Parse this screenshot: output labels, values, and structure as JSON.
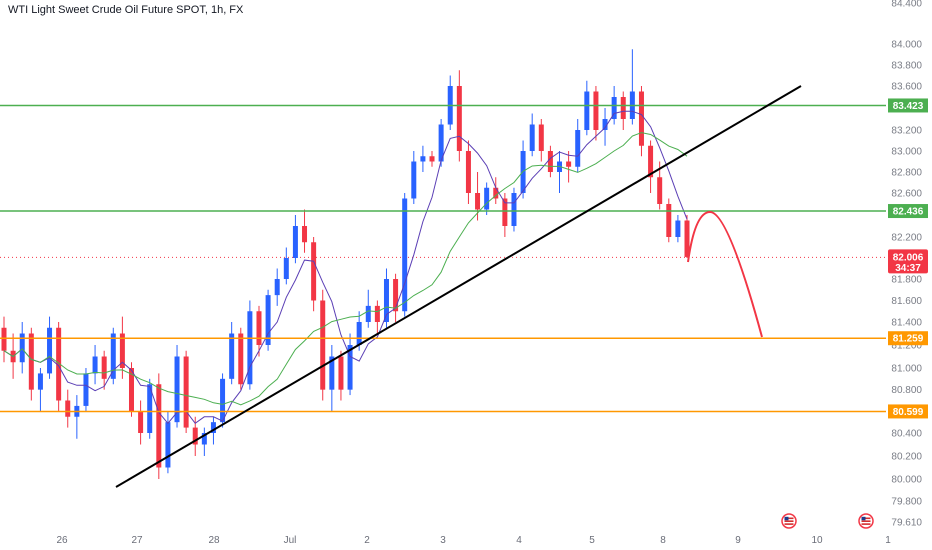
{
  "header": {
    "title": "WTI Light Sweet Crude Oil Future SPOT, 1h, FX"
  },
  "current_price": {
    "value": "82.006",
    "countdown": "34:37",
    "color": "#f23645"
  },
  "events_icon": "us-flag-icon",
  "chart_data": {
    "type": "candlestick",
    "title": "WTI Light Sweet Crude Oil Future SPOT, 1h, FX",
    "ylim": [
      79.61,
      84.4
    ],
    "y_ticks": [
      "84.400",
      "84.000",
      "83.800",
      "83.600",
      "83.200",
      "83.000",
      "82.800",
      "82.600",
      "82.200",
      "81.800",
      "81.600",
      "81.400",
      "81.200",
      "81.000",
      "80.800",
      "80.400",
      "80.200",
      "80.000",
      "79.800",
      "79.610"
    ],
    "x_ticks": [
      "26",
      "27",
      "28",
      "Jul",
      "2",
      "3",
      "4",
      "5",
      "8",
      "9",
      "10",
      "1"
    ],
    "bull_color": "#2962ff",
    "bear_color": "#f23645",
    "candles_approx": [
      [
        81.35,
        81.45,
        81.05,
        81.15
      ],
      [
        81.15,
        81.3,
        80.9,
        81.05
      ],
      [
        81.05,
        81.4,
        80.95,
        81.3
      ],
      [
        81.3,
        81.35,
        80.7,
        80.8
      ],
      [
        80.8,
        81.0,
        80.6,
        80.95
      ],
      [
        80.95,
        81.45,
        80.9,
        81.35
      ],
      [
        81.35,
        81.4,
        80.6,
        80.7
      ],
      [
        80.7,
        80.8,
        80.45,
        80.55
      ],
      [
        80.55,
        80.75,
        80.35,
        80.65
      ],
      [
        80.65,
        81.0,
        80.6,
        80.95
      ],
      [
        80.95,
        81.2,
        80.85,
        81.1
      ],
      [
        81.1,
        81.15,
        80.8,
        80.9
      ],
      [
        80.9,
        81.35,
        80.85,
        81.3
      ],
      [
        81.3,
        81.45,
        80.9,
        81.0
      ],
      [
        81.0,
        81.05,
        80.55,
        80.6
      ],
      [
        80.6,
        80.7,
        80.3,
        80.4
      ],
      [
        80.4,
        80.9,
        80.35,
        80.85
      ],
      [
        80.85,
        80.95,
        80.0,
        80.1
      ],
      [
        80.1,
        80.6,
        80.05,
        80.5
      ],
      [
        80.5,
        81.2,
        80.45,
        81.1
      ],
      [
        81.1,
        81.15,
        80.4,
        80.45
      ],
      [
        80.45,
        80.55,
        80.2,
        80.3
      ],
      [
        80.3,
        80.45,
        80.2,
        80.4
      ],
      [
        80.4,
        80.55,
        80.3,
        80.5
      ],
      [
        80.5,
        80.95,
        80.45,
        80.9
      ],
      [
        80.9,
        81.4,
        80.85,
        81.3
      ],
      [
        81.3,
        81.35,
        80.8,
        80.85
      ],
      [
        80.85,
        81.6,
        80.8,
        81.5
      ],
      [
        81.5,
        81.55,
        81.1,
        81.2
      ],
      [
        81.2,
        81.7,
        81.15,
        81.65
      ],
      [
        81.65,
        81.9,
        81.55,
        81.8
      ],
      [
        81.8,
        82.1,
        81.75,
        82.0
      ],
      [
        82.0,
        82.4,
        81.95,
        82.3
      ],
      [
        82.3,
        82.45,
        82.05,
        82.15
      ],
      [
        82.15,
        82.2,
        81.5,
        81.6
      ],
      [
        81.6,
        81.7,
        80.7,
        80.8
      ],
      [
        80.8,
        81.2,
        80.6,
        81.1
      ],
      [
        81.1,
        81.15,
        80.7,
        80.8
      ],
      [
        80.8,
        81.3,
        80.75,
        81.2
      ],
      [
        81.2,
        81.5,
        81.15,
        81.4
      ],
      [
        81.4,
        81.7,
        81.35,
        81.55
      ],
      [
        81.55,
        81.6,
        81.3,
        81.4
      ],
      [
        81.4,
        81.9,
        81.35,
        81.8
      ],
      [
        81.8,
        81.85,
        81.4,
        81.5
      ],
      [
        81.5,
        82.6,
        81.45,
        82.55
      ],
      [
        82.55,
        83.0,
        82.5,
        82.9
      ],
      [
        82.9,
        83.05,
        82.8,
        82.95
      ],
      [
        82.95,
        83.0,
        82.85,
        82.9
      ],
      [
        82.9,
        83.3,
        82.85,
        83.25
      ],
      [
        83.25,
        83.7,
        83.2,
        83.6
      ],
      [
        83.6,
        83.75,
        82.9,
        83.0
      ],
      [
        83.0,
        83.1,
        82.5,
        82.6
      ],
      [
        82.6,
        82.8,
        82.35,
        82.45
      ],
      [
        82.45,
        82.7,
        82.4,
        82.65
      ],
      [
        82.65,
        82.75,
        82.5,
        82.55
      ],
      [
        82.55,
        82.6,
        82.2,
        82.3
      ],
      [
        82.3,
        82.65,
        82.25,
        82.6
      ],
      [
        82.6,
        83.1,
        82.55,
        83.0
      ],
      [
        83.0,
        83.35,
        82.95,
        83.25
      ],
      [
        83.25,
        83.3,
        82.9,
        83.0
      ],
      [
        83.0,
        83.05,
        82.75,
        82.8
      ],
      [
        82.8,
        83.0,
        82.6,
        82.9
      ],
      [
        82.9,
        83.0,
        82.7,
        82.85
      ],
      [
        82.85,
        83.3,
        82.8,
        83.2
      ],
      [
        83.2,
        83.65,
        83.15,
        83.55
      ],
      [
        83.55,
        83.6,
        83.1,
        83.2
      ],
      [
        83.2,
        83.4,
        83.05,
        83.3
      ],
      [
        83.3,
        83.6,
        83.25,
        83.5
      ],
      [
        83.5,
        83.55,
        83.2,
        83.3
      ],
      [
        83.3,
        83.95,
        83.25,
        83.55
      ],
      [
        83.55,
        83.6,
        82.95,
        83.05
      ],
      [
        83.05,
        83.1,
        82.6,
        82.75
      ],
      [
        82.75,
        82.9,
        82.45,
        82.5
      ],
      [
        82.5,
        82.55,
        82.15,
        82.2
      ],
      [
        82.2,
        82.4,
        82.15,
        82.35
      ],
      [
        82.35,
        82.4,
        82.0,
        82.01
      ]
    ]
  }
}
